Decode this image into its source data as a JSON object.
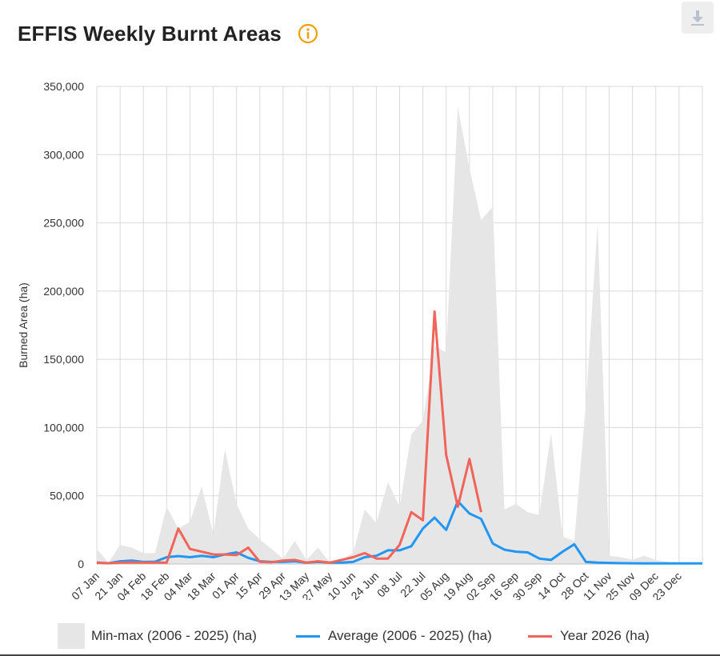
{
  "header": {
    "title": "EFFIS Weekly Burnt Areas"
  },
  "icons": {
    "info": "info-circle-icon",
    "download": "download-icon"
  },
  "colors": {
    "minmax": "#e6e6e6",
    "average": "#2196f3",
    "year": "#f0645a",
    "info": "#f59c00",
    "grid": "#d9d9d9"
  },
  "chart_data": {
    "type": "line",
    "ylabel": "Burned Area (ha)",
    "xlabel": "",
    "ylim": [
      0,
      350000
    ],
    "y_ticks": [
      0,
      50000,
      100000,
      150000,
      200000,
      250000,
      300000,
      350000
    ],
    "y_tick_labels": [
      "0",
      "50,000",
      "100,000",
      "150,000",
      "200,000",
      "250,000",
      "300,000",
      "350,000"
    ],
    "x_tick_labels": [
      "07 Jan",
      "21 Jan",
      "04 Feb",
      "18 Feb",
      "04 Mar",
      "18 Mar",
      "01 Apr",
      "15 Apr",
      "29 Apr",
      "13 May",
      "27 May",
      "10 Jun",
      "24 Jun",
      "08 Jul",
      "22 Jul",
      "05 Aug",
      "19 Aug",
      "02 Sep",
      "16 Sep",
      "30 Sep",
      "14 Oct",
      "28 Oct",
      "11 Nov",
      "25 Nov",
      "09 Dec",
      "23 Dec"
    ],
    "grid": true,
    "legend_position": "bottom",
    "series": [
      {
        "name": "Min-max (2006 - 2025) (ha)",
        "type": "area",
        "values": [
          11000,
          1000,
          14000,
          12000,
          8000,
          8000,
          42000,
          26000,
          31000,
          57000,
          22000,
          84000,
          44000,
          26000,
          18000,
          11000,
          4000,
          17000,
          3000,
          12000,
          1000,
          3000,
          8000,
          40000,
          30000,
          60000,
          42000,
          95000,
          105000,
          160000,
          155000,
          335000,
          290000,
          252000,
          262000,
          40000,
          44000,
          38000,
          36000,
          96000,
          20000,
          17000,
          118000,
          250000,
          6000,
          5000,
          3000,
          6000,
          3000,
          1500,
          1000,
          1000,
          1000
        ],
        "lower": [
          0,
          0,
          0,
          0,
          0,
          0,
          0,
          0,
          0,
          0,
          0,
          0,
          0,
          0,
          0,
          0,
          0,
          0,
          0,
          0,
          0,
          0,
          0,
          0,
          0,
          0,
          0,
          0,
          0,
          0,
          0,
          0,
          0,
          0,
          0,
          0,
          0,
          0,
          0,
          0,
          0,
          0,
          0,
          0,
          0,
          0,
          0,
          0,
          0,
          0,
          0,
          0,
          0
        ]
      },
      {
        "name": "Average (2006 - 2025) (ha)",
        "type": "line",
        "values": [
          1000,
          600,
          2000,
          2500,
          1500,
          1700,
          5000,
          5800,
          5000,
          6000,
          5000,
          7000,
          8500,
          4500,
          2000,
          1500,
          1500,
          2000,
          1000,
          1500,
          1000,
          1000,
          1500,
          5000,
          6000,
          10000,
          10000,
          13000,
          26000,
          34000,
          25000,
          46000,
          37000,
          33000,
          15000,
          10500,
          9000,
          8500,
          4000,
          3000,
          9000,
          14500,
          1500,
          1000,
          800,
          600,
          500,
          400,
          400,
          400,
          400,
          400,
          400
        ]
      },
      {
        "name": "Year 2026 (ha)",
        "type": "line",
        "values": [
          1000,
          500,
          1000,
          1200,
          1000,
          1000,
          1000,
          26000,
          11000,
          9000,
          7000,
          7000,
          6500,
          12000,
          1500,
          1300,
          2500,
          3000,
          1000,
          2000,
          1000,
          3000,
          5000,
          8000,
          4000,
          4000,
          14000,
          38000,
          32000,
          185000,
          80000,
          42000,
          77000,
          38000
        ]
      }
    ]
  }
}
